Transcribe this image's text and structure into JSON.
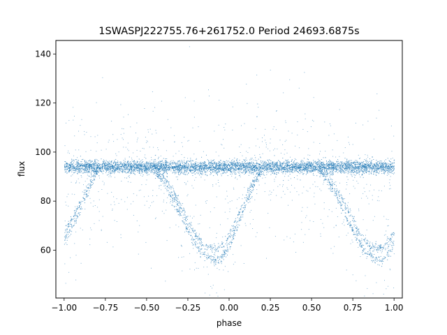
{
  "chart_data": {
    "type": "scatter",
    "title": "1SWASPJ222755.76+261752.0 Period 24693.6875s",
    "xlabel": "phase",
    "ylabel": "flux",
    "xlim": [
      -1.05,
      1.05
    ],
    "ylim": [
      40.5,
      145.5
    ],
    "xticks": [
      -1.0,
      -0.75,
      -0.5,
      -0.25,
      0.0,
      0.25,
      0.5,
      0.75,
      1.0
    ],
    "xtick_labels": [
      "−1.00",
      "−0.75",
      "−0.50",
      "−0.25",
      "0.00",
      "0.25",
      "0.50",
      "0.75",
      "1.00"
    ],
    "yticks": [
      60,
      80,
      100,
      120,
      140
    ],
    "ytick_labels": [
      "60",
      "80",
      "100",
      "120",
      "140"
    ],
    "grid": false,
    "marker_color": "#1f77b4",
    "series": [
      {
        "description_phase": [
          -1.0,
          -0.95,
          -0.9,
          -0.85,
          -0.8,
          -0.75,
          -0.7,
          -0.6,
          -0.5,
          -0.45,
          -0.4,
          -0.35,
          -0.3,
          -0.25,
          -0.2,
          -0.15,
          -0.1,
          -0.07,
          -0.05,
          0.0,
          0.05,
          0.1,
          0.15,
          0.2,
          0.25,
          0.3,
          0.4,
          0.5,
          0.55,
          0.6,
          0.65,
          0.7,
          0.75,
          0.8,
          0.85,
          0.9,
          0.93,
          0.95,
          1.0
        ],
        "lower_branch_flux": [
          64,
          70,
          77,
          85,
          92,
          94,
          94,
          94,
          94,
          92,
          88,
          82,
          75,
          68,
          62,
          58,
          56,
          56,
          57,
          62,
          70,
          79,
          87,
          93,
          94,
          94,
          94,
          94,
          92,
          88,
          82,
          75,
          68,
          62,
          58,
          56,
          56,
          57,
          64
        ],
        "upper_branch_flux": [
          67,
          73,
          80,
          87,
          93,
          94,
          94,
          94,
          94,
          93,
          90,
          85,
          79,
          72,
          66,
          62,
          61,
          61,
          62,
          66,
          74,
          82,
          89,
          93,
          94,
          94,
          94,
          94,
          93,
          90,
          85,
          79,
          72,
          66,
          62,
          61,
          61,
          62,
          67
        ],
        "constant_band_flux": 94
      }
    ]
  }
}
